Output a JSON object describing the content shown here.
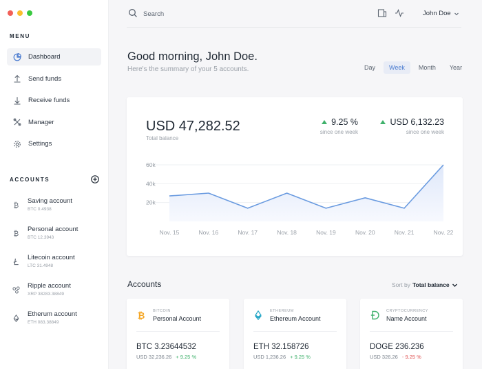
{
  "window": {
    "controls": [
      "#f25f58",
      "#fbbe2e",
      "#3ac940"
    ]
  },
  "sidebar": {
    "menu_label": "MENU",
    "nav": [
      {
        "label": "Dashboard",
        "icon": "pie-chart-icon",
        "active": true
      },
      {
        "label": "Send funds",
        "icon": "upload-icon",
        "active": false
      },
      {
        "label": "Receive funds",
        "icon": "download-icon",
        "active": false
      },
      {
        "label": "Manager",
        "icon": "tools-icon",
        "active": false
      },
      {
        "label": "Settings",
        "icon": "gear-icon",
        "active": false
      }
    ],
    "accounts_label": "ACCOUNTS",
    "accounts": [
      {
        "name": "Saving account",
        "sub": "BTC 0.4938",
        "icon": "bitcoin-icon"
      },
      {
        "name": "Personal account",
        "sub": "BTC 12.3943",
        "icon": "bitcoin-icon"
      },
      {
        "name": "Litecoin account",
        "sub": "LTC 31.4948",
        "icon": "litecoin-icon"
      },
      {
        "name": "Ripple account",
        "sub": "XRP 38283.38849",
        "icon": "ripple-icon"
      },
      {
        "name": "Etherum account",
        "sub": "ETH 083.38849",
        "icon": "ethereum-icon"
      }
    ]
  },
  "topbar": {
    "search_placeholder": "Search",
    "user_name": "John Doe"
  },
  "main": {
    "greeting": "Good morning, John Doe.",
    "summary": "Here's the summary of your 5 accounts.",
    "ranges": [
      {
        "label": "Day",
        "active": false
      },
      {
        "label": "Week",
        "active": true
      },
      {
        "label": "Month",
        "active": false
      },
      {
        "label": "Year",
        "active": false
      }
    ],
    "balance": {
      "value": "USD 47,282.52",
      "label": "Total balance"
    },
    "stats": [
      {
        "value": "9.25 %",
        "sub": "since one week"
      },
      {
        "value": "USD 6,132.23",
        "sub": "since one week"
      }
    ],
    "accounts_title": "Accounts",
    "sort_prefix": "Sort by",
    "sort_value": "Total balance",
    "cards": [
      {
        "type": "BITCOIN",
        "name": "Personal Account",
        "amount": "BTC 3.23644532",
        "usd": "USD 32,236.26",
        "change": "+ 9.25 %",
        "trend": "up",
        "icon": "bitcoin-icon",
        "color": "#f5a623"
      },
      {
        "type": "ETHEREUM",
        "name": "Ethereum Account",
        "amount": "ETH 32.158726",
        "usd": "USD 1,236.26",
        "change": "+ 9.25 %",
        "trend": "up",
        "icon": "ethereum-icon",
        "color": "#29a8c8"
      },
      {
        "type": "CRYPTOCURRENCY",
        "name": "Name Account",
        "amount": "DOGE 236.236",
        "usd": "USD 326.26",
        "change": "- 9.25 %",
        "trend": "down",
        "icon": "dogecoin-icon",
        "color": "#3fb16b"
      }
    ]
  },
  "chart_data": {
    "type": "area",
    "categories": [
      "Nov. 15",
      "Nov. 16",
      "Nov. 17",
      "Nov. 18",
      "Nov. 19",
      "Nov. 20",
      "Nov. 21",
      "Nov. 22"
    ],
    "values": [
      27,
      30,
      14,
      30,
      14,
      25,
      14,
      60
    ],
    "y_ticks": [
      "60k",
      "40k",
      "20k"
    ],
    "y_tick_values": [
      60,
      40,
      20
    ],
    "ylim": [
      0,
      60
    ],
    "grid": true,
    "line_color": "#6a9be0"
  }
}
